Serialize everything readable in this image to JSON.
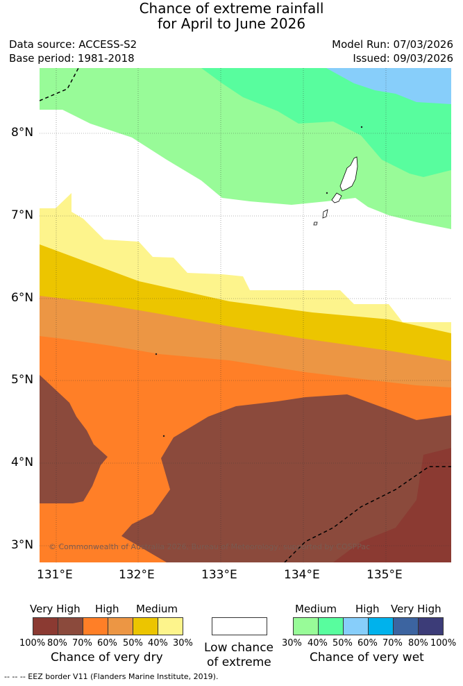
{
  "title_line1": "Chance of extreme rainfall",
  "title_line2": "for April to June 2026",
  "meta": {
    "data_source": "Data source: ACCESS-S2",
    "base_period": "Base period: 1981-2018",
    "model_run": "Model Run: 07/03/2026",
    "issued": "Issued: 09/03/2026"
  },
  "map": {
    "lat_labels": [
      "8°N",
      "7°N",
      "6°N",
      "5°N",
      "4°N",
      "3°N"
    ],
    "lon_labels": [
      "131°E",
      "132°E",
      "133°E",
      "134°E",
      "135°E"
    ],
    "copyright": "© Commonwealth of Australia 2026, Bureau of Meteorology, supported by COSPPac"
  },
  "legend_dry": {
    "categories": [
      "Very High",
      "High",
      "Medium"
    ],
    "ticks": [
      "100%",
      "80%",
      "70%",
      "60%",
      "50%",
      "40%",
      "30%"
    ],
    "colors": [
      "#8b3a32",
      "#8b4a3c",
      "#ff7f27",
      "#ec9644",
      "#ecc500",
      "#fdf48c"
    ],
    "caption": "Chance of very dry"
  },
  "legend_low": {
    "caption_line1": "Low chance",
    "caption_line2": "of extreme",
    "color": "#ffffff"
  },
  "legend_wet": {
    "categories": [
      "Medium",
      "High",
      "Very High"
    ],
    "ticks": [
      "30%",
      "40%",
      "50%",
      "60%",
      "70%",
      "80%",
      "100%"
    ],
    "colors": [
      "#98fb98",
      "#58fd9e",
      "#87cefa",
      "#00b2ec",
      "#3c64a0",
      "#3c3c78"
    ],
    "caption": "Chance of very wet"
  },
  "footer": "--  --  -- EEZ border V11 (Flanders Marine Institute, 2019)."
}
